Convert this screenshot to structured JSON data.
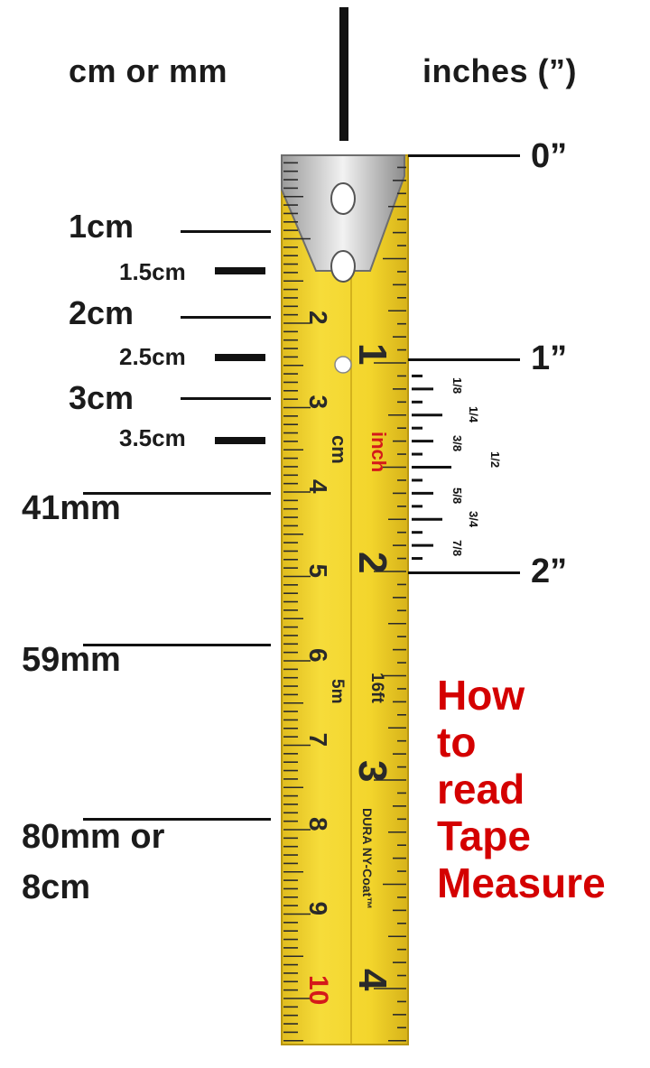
{
  "headers": {
    "left": "cm or mm",
    "right": "inches (”)"
  },
  "cm_labels": {
    "cm1": "1cm",
    "cm1_5": "1.5cm",
    "cm2": "2cm",
    "cm2_5": "2.5cm",
    "cm3": "3cm",
    "cm3_5": "3.5cm",
    "mm41": "41mm",
    "mm59": "59mm",
    "mm80_line1": "80mm or",
    "mm80_line2": "8cm"
  },
  "inch_labels": {
    "zero": "0”",
    "one": "1”",
    "two": "2”"
  },
  "fractions": {
    "f1_8": "1/8",
    "f1_4": "1/4",
    "f3_8": "3/8",
    "f1_2": "1/2",
    "f5_8": "5/8",
    "f3_4": "3/4",
    "f7_8": "7/8"
  },
  "tape": {
    "cm_numbers": [
      "2",
      "3",
      "4",
      "5",
      "6",
      "7",
      "8",
      "9",
      "10"
    ],
    "cm_unit": "cm",
    "inch_word": "inch",
    "inch_numbers": [
      "1",
      "2",
      "3",
      "4"
    ],
    "ft_mark": "16ft",
    "m_mark": "5m",
    "brand": "DURA NY-Coat™",
    "colors": {
      "tape": "#f2d22a",
      "tape_edge": "#c9a616",
      "digits": "#2a2a2a",
      "red": "#d41a1a"
    }
  },
  "title_lines": [
    "How",
    "to",
    "read",
    "Tape",
    "Measure"
  ]
}
